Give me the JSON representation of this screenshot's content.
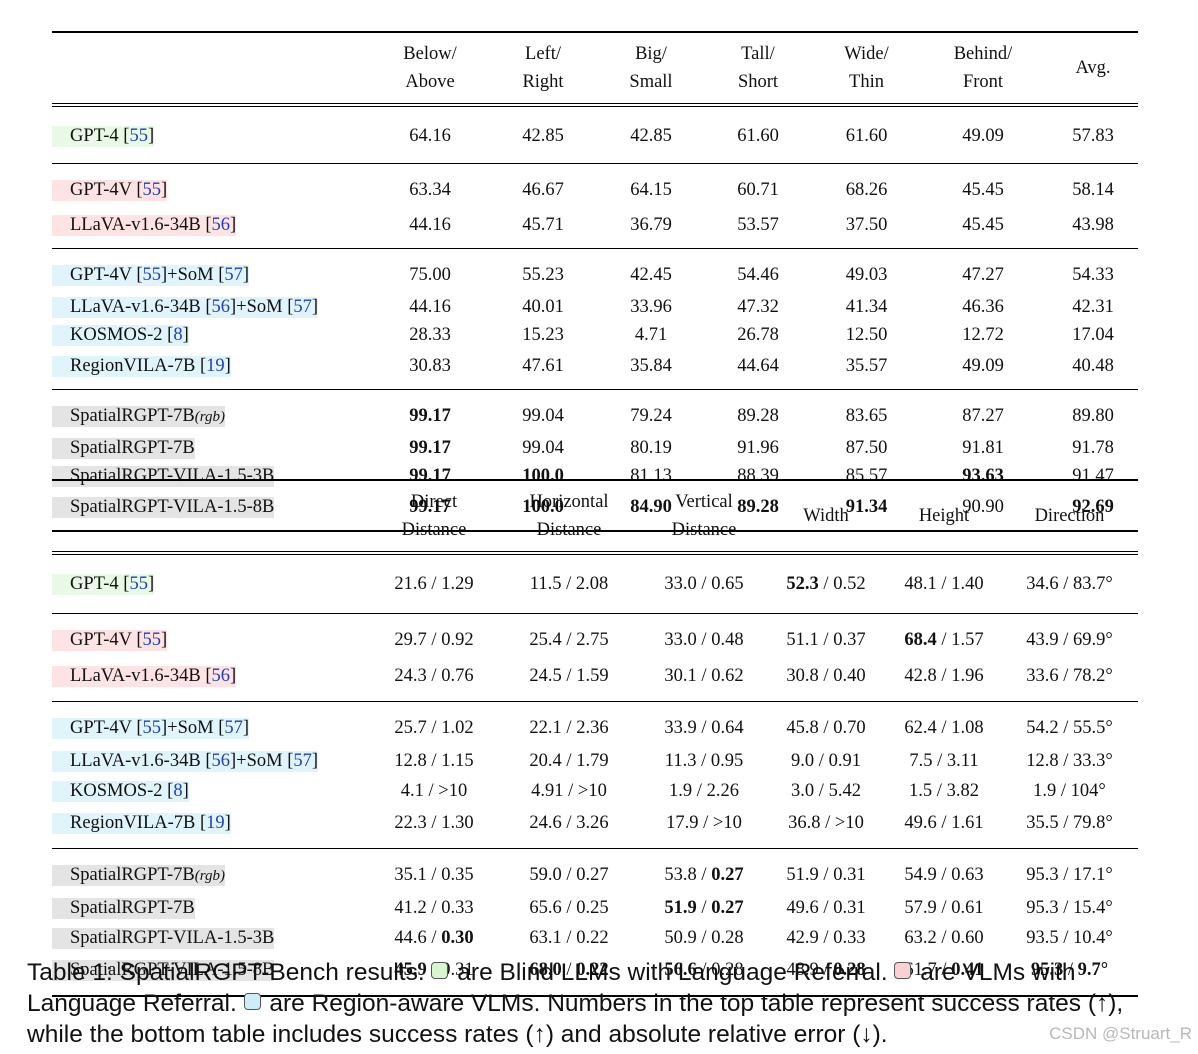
{
  "top_table": {
    "headers": [
      {
        "l1": "Below/",
        "l2": "Above"
      },
      {
        "l1": "Left/",
        "l2": "Right"
      },
      {
        "l1": "Big/",
        "l2": "Small"
      },
      {
        "l1": "Tall/",
        "l2": "Short"
      },
      {
        "l1": "Wide/",
        "l2": "Thin"
      },
      {
        "l1": "Behind/",
        "l2": "Front"
      },
      {
        "l1": "Avg.",
        "l2": ""
      }
    ],
    "groups": [
      {
        "category": "blind-llm",
        "rows": [
          {
            "name": "GPT-4",
            "ref": "55",
            "cells": [
              {
                "v": "64.16"
              },
              {
                "v": "42.85"
              },
              {
                "v": "42.85"
              },
              {
                "v": "61.60"
              },
              {
                "v": "61.60"
              },
              {
                "v": "49.09"
              },
              {
                "v": "57.83"
              }
            ]
          }
        ]
      },
      {
        "category": "vlm",
        "rows": [
          {
            "name": "GPT-4V",
            "ref": "55",
            "cells": [
              {
                "v": "63.34"
              },
              {
                "v": "46.67"
              },
              {
                "v": "64.15"
              },
              {
                "v": "60.71"
              },
              {
                "v": "68.26"
              },
              {
                "v": "45.45"
              },
              {
                "v": "58.14"
              }
            ]
          },
          {
            "name": "LLaVA-v1.6-34B",
            "ref": "56",
            "cells": [
              {
                "v": "44.16"
              },
              {
                "v": "45.71"
              },
              {
                "v": "36.79"
              },
              {
                "v": "53.57"
              },
              {
                "v": "37.50"
              },
              {
                "v": "45.45"
              },
              {
                "v": "43.98"
              }
            ]
          }
        ]
      },
      {
        "category": "region-aware",
        "rows": [
          {
            "name": "GPT-4V",
            "ref": "55",
            "suffix": "+SoM",
            "ref2": "57",
            "cells": [
              {
                "v": "75.00"
              },
              {
                "v": "55.23"
              },
              {
                "v": "42.45"
              },
              {
                "v": "54.46"
              },
              {
                "v": "49.03"
              },
              {
                "v": "47.27"
              },
              {
                "v": "54.33"
              }
            ]
          },
          {
            "name": "LLaVA-v1.6-34B",
            "ref": "56",
            "suffix": "+SoM",
            "ref2": "57",
            "cells": [
              {
                "v": "44.16"
              },
              {
                "v": "40.01"
              },
              {
                "v": "33.96"
              },
              {
                "v": "47.32"
              },
              {
                "v": "41.34"
              },
              {
                "v": "46.36"
              },
              {
                "v": "42.31"
              }
            ]
          },
          {
            "name": "KOSMOS-2",
            "ref": "8",
            "cells": [
              {
                "v": "28.33"
              },
              {
                "v": "15.23"
              },
              {
                "v": "4.71"
              },
              {
                "v": "26.78"
              },
              {
                "v": "12.50"
              },
              {
                "v": "12.72"
              },
              {
                "v": "17.04"
              }
            ]
          },
          {
            "name": "RegionVILA-7B",
            "ref": "19",
            "cells": [
              {
                "v": "30.83"
              },
              {
                "v": "47.61"
              },
              {
                "v": "35.84"
              },
              {
                "v": "44.64"
              },
              {
                "v": "35.57"
              },
              {
                "v": "49.09"
              },
              {
                "v": "40.48"
              }
            ]
          }
        ]
      },
      {
        "category": "ours",
        "rows": [
          {
            "name": "SpatialRGPT-7B",
            "sub": "(rgb)",
            "cells": [
              {
                "v": "99.17",
                "b": true
              },
              {
                "v": "99.04"
              },
              {
                "v": "79.24"
              },
              {
                "v": "89.28"
              },
              {
                "v": "83.65"
              },
              {
                "v": "87.27"
              },
              {
                "v": "89.80"
              }
            ]
          },
          {
            "name": "SpatialRGPT-7B",
            "cells": [
              {
                "v": "99.17",
                "b": true
              },
              {
                "v": "99.04"
              },
              {
                "v": "80.19"
              },
              {
                "v": "91.96"
              },
              {
                "v": "87.50"
              },
              {
                "v": "91.81"
              },
              {
                "v": "91.78"
              }
            ]
          },
          {
            "name": "SpatialRGPT-VILA-1.5-3B",
            "cells": [
              {
                "v": "99.17",
                "b": true
              },
              {
                "v": "100.0",
                "b": true
              },
              {
                "v": "81.13"
              },
              {
                "v": "88.39"
              },
              {
                "v": "85.57"
              },
              {
                "v": "93.63",
                "b": true
              },
              {
                "v": "91.47"
              }
            ]
          },
          {
            "name": "SpatialRGPT-VILA-1.5-8B",
            "cells": [
              {
                "v": "99.17",
                "b": true
              },
              {
                "v": "100.0",
                "b": true
              },
              {
                "v": "84.90",
                "b": true
              },
              {
                "v": "89.28",
                "b": true
              },
              {
                "v": "91.34",
                "b": true
              },
              {
                "v": "90.90"
              },
              {
                "v": "92.69",
                "b": true
              }
            ]
          }
        ]
      }
    ]
  },
  "bottom_table": {
    "headers": [
      {
        "l1": "Direct",
        "l2": "Distance"
      },
      {
        "l1": "Horizontal",
        "l2": "Distance"
      },
      {
        "l1": "Vertical",
        "l2": "Distance"
      },
      {
        "l1": "Width",
        "l2": ""
      },
      {
        "l1": "Height",
        "l2": ""
      },
      {
        "l1": "Direction",
        "l2": ""
      }
    ],
    "groups": [
      {
        "category": "blind-llm",
        "rows": [
          {
            "name": "GPT-4",
            "ref": "55",
            "cells": [
              {
                "a": "21.6",
                "b": "1.29"
              },
              {
                "a": "11.5",
                "b": "2.08"
              },
              {
                "a": "33.0",
                "b": "0.65"
              },
              {
                "a": "52.3",
                "b": "0.52",
                "ab": true
              },
              {
                "a": "48.1",
                "b": "1.40"
              },
              {
                "a": "34.6",
                "b": "83.7°"
              }
            ]
          }
        ]
      },
      {
        "category": "vlm",
        "rows": [
          {
            "name": "GPT-4V",
            "ref": "55",
            "cells": [
              {
                "a": "29.7",
                "b": "0.92"
              },
              {
                "a": "25.4",
                "b": "2.75"
              },
              {
                "a": "33.0",
                "b": "0.48"
              },
              {
                "a": "51.1",
                "b": "0.37"
              },
              {
                "a": "68.4",
                "b": "1.57",
                "ab": true
              },
              {
                "a": "43.9",
                "b": "69.9°"
              }
            ]
          },
          {
            "name": "LLaVA-v1.6-34B",
            "ref": "56",
            "cells": [
              {
                "a": "24.3",
                "b": "0.76"
              },
              {
                "a": "24.5",
                "b": "1.59"
              },
              {
                "a": "30.1",
                "b": "0.62"
              },
              {
                "a": "30.8",
                "b": "0.40"
              },
              {
                "a": "42.8",
                "b": "1.96"
              },
              {
                "a": "33.6",
                "b": "78.2°"
              }
            ]
          }
        ]
      },
      {
        "category": "region-aware",
        "rows": [
          {
            "name": "GPT-4V",
            "ref": "55",
            "suffix": "+SoM",
            "ref2": "57",
            "cells": [
              {
                "a": "25.7",
                "b": "1.02"
              },
              {
                "a": "22.1",
                "b": "2.36"
              },
              {
                "a": "33.9",
                "b": "0.64"
              },
              {
                "a": "45.8",
                "b": "0.70"
              },
              {
                "a": "62.4",
                "b": "1.08"
              },
              {
                "a": "54.2",
                "b": "55.5°"
              }
            ]
          },
          {
            "name": "LLaVA-v1.6-34B",
            "ref": "56",
            "suffix": "+SoM",
            "ref2": "57",
            "cells": [
              {
                "a": "12.8",
                "b": "1.15"
              },
              {
                "a": "20.4",
                "b": "1.79"
              },
              {
                "a": "11.3",
                "b": "0.95"
              },
              {
                "a": "9.0",
                "b": "0.91"
              },
              {
                "a": "7.5",
                "b": "3.11"
              },
              {
                "a": "12.8",
                "b": "33.3°"
              }
            ]
          },
          {
            "name": "KOSMOS-2",
            "ref": "8",
            "cells": [
              {
                "a": "4.1",
                "b": ">10"
              },
              {
                "a": "4.91",
                "b": ">10"
              },
              {
                "a": "1.9",
                "b": "2.26"
              },
              {
                "a": "3.0",
                "b": "5.42"
              },
              {
                "a": "1.5",
                "b": "3.82"
              },
              {
                "a": "1.9",
                "b": "104°"
              }
            ]
          },
          {
            "name": "RegionVILA-7B",
            "ref": "19",
            "cells": [
              {
                "a": "22.3",
                "b": "1.30"
              },
              {
                "a": "24.6",
                "b": "3.26"
              },
              {
                "a": "17.9",
                "b": ">10"
              },
              {
                "a": "36.8",
                "b": ">10"
              },
              {
                "a": "49.6",
                "b": "1.61"
              },
              {
                "a": "35.5",
                "b": "79.8°"
              }
            ]
          }
        ]
      },
      {
        "category": "ours",
        "rows": [
          {
            "name": "SpatialRGPT-7B",
            "sub": "(rgb)",
            "cells": [
              {
                "a": "35.1",
                "b": "0.35"
              },
              {
                "a": "59.0",
                "b": "0.27"
              },
              {
                "a": "53.8",
                "b": "0.27",
                "bb": true
              },
              {
                "a": "51.9",
                "b": "0.31"
              },
              {
                "a": "54.9",
                "b": "0.63"
              },
              {
                "a": "95.3",
                "b": "17.1°"
              }
            ]
          },
          {
            "name": "SpatialRGPT-7B",
            "cells": [
              {
                "a": "41.2",
                "b": "0.33"
              },
              {
                "a": "65.6",
                "b": "0.25"
              },
              {
                "a": "51.9",
                "b": "0.27",
                "ab": true,
                "bb": true
              },
              {
                "a": "49.6",
                "b": "0.31"
              },
              {
                "a": "57.9",
                "b": "0.61"
              },
              {
                "a": "95.3",
                "b": "15.4°"
              }
            ]
          },
          {
            "name": "SpatialRGPT-VILA-1.5-3B",
            "cells": [
              {
                "a": "44.6",
                "b": "0.30",
                "bb": true
              },
              {
                "a": "63.1",
                "b": "0.22"
              },
              {
                "a": "50.9",
                "b": "0.28"
              },
              {
                "a": "42.9",
                "b": "0.33"
              },
              {
                "a": "63.2",
                "b": "0.60"
              },
              {
                "a": "93.5",
                "b": "10.4°"
              }
            ]
          },
          {
            "name": "SpatialRGPT-VILA-1.5-8B",
            "cells": [
              {
                "a": "45.9",
                "b": "0.31",
                "ab": true
              },
              {
                "a": "68.0",
                "b": "0.22",
                "ab": true,
                "bb": true
              },
              {
                "a": "56.6",
                "b": "0.28",
                "ab": true
              },
              {
                "a": "48.9",
                "b": "0.28",
                "bb": true
              },
              {
                "a": "61.7",
                "b": "0.41",
                "bb": true
              },
              {
                "a": "95.3",
                "b": "9.7°",
                "ab": true,
                "bb": true
              }
            ]
          }
        ]
      }
    ]
  },
  "caption": {
    "label": "Table 1:",
    "title": "SpatialRGPT-Bench results.",
    "blind_legend": "are Blind LLMs with Language Referral.",
    "vlm_legend": "are VLMs with Language Referral.",
    "region_legend": "are Region-aware VLMs.",
    "body": "Numbers in the top table represent success rates (↑), while the bottom table includes success rates (↑) and absolute relative error (↓)."
  },
  "watermark": "CSDN @Struart_R",
  "colors": {
    "blind_llm": "#e8f9e5",
    "vlm": "#fde3e4",
    "region_aware": "#dff4fb",
    "ours": "#e4e4e4",
    "citation": "#1f3fb5"
  }
}
